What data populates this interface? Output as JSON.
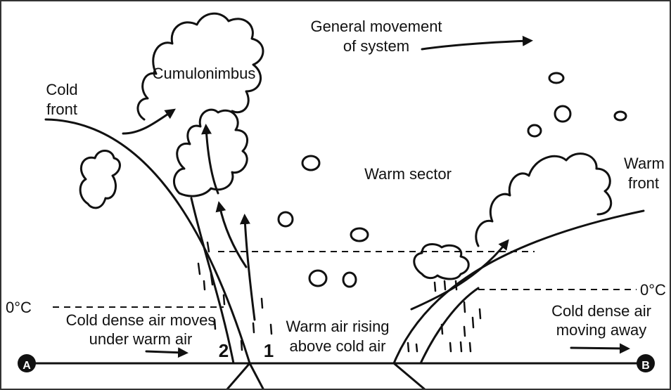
{
  "labels": {
    "system_movement": [
      "General movement",
      "of system"
    ],
    "cumulonimbus": "Cumulonimbus",
    "cold_front": [
      "Cold",
      "front"
    ],
    "warm_sector": "Warm sector",
    "warm_front": [
      "Warm",
      "front"
    ],
    "freezing_left": "0°C",
    "freezing_right": "0°C",
    "cold_air_under": [
      "Cold dense air moves",
      "under warm air"
    ],
    "warm_air_rising": [
      "Warm air rising",
      "above cold air"
    ],
    "cold_air_away": [
      "Cold dense air",
      "moving away"
    ],
    "marker_2": "2",
    "marker_1": "1",
    "point_a": "A",
    "point_b": "B"
  }
}
